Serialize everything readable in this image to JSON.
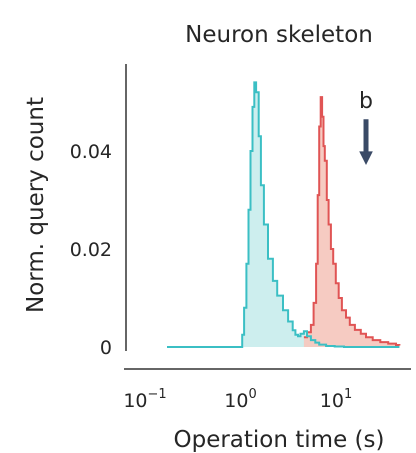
{
  "chart_data": {
    "type": "area",
    "title": "Neuron skeleton",
    "xlabel": "Operation time (s)",
    "ylabel": "Norm. query count",
    "x_scale": "log",
    "xlim": [
      0.1,
      40
    ],
    "ylim": [
      0,
      0.055
    ],
    "grid": false,
    "x_ticks": [
      {
        "base": "10",
        "exp": "−1",
        "value": 0.1
      },
      {
        "base": "10",
        "exp": "0",
        "value": 1
      },
      {
        "base": "10",
        "exp": "1",
        "value": 10
      }
    ],
    "y_ticks": [
      {
        "label": "0",
        "value": 0
      },
      {
        "label": "0.02",
        "value": 0.02
      },
      {
        "label": "0.04",
        "value": 0.04
      }
    ],
    "annotation": {
      "text": "b",
      "x": 17,
      "y_top": 0.048,
      "y_bottom": 0.039
    },
    "series": [
      {
        "color": "#3bbfc4",
        "fill": "#cdeeee",
        "x": [
          0.14,
          0.6,
          0.82,
          0.86,
          0.9,
          0.95,
          1.0,
          1.05,
          1.1,
          1.15,
          1.2,
          1.28,
          1.35,
          1.45,
          1.6,
          1.8,
          2.0,
          2.3,
          2.6,
          2.9,
          3.1,
          3.3,
          3.5,
          3.8,
          4.1,
          4.5,
          5.0,
          5.5,
          6.5,
          8,
          10,
          15,
          20,
          38
        ],
        "y": [
          0,
          0,
          0,
          0.0025,
          0.008,
          0.017,
          0.028,
          0.04,
          0.049,
          0.054,
          0.052,
          0.043,
          0.033,
          0.025,
          0.018,
          0.0135,
          0.0105,
          0.0075,
          0.0052,
          0.0034,
          0.0025,
          0.0022,
          0.0027,
          0.0032,
          0.0022,
          0.0014,
          0.0009,
          0.0005,
          0.0002,
          0.0001,
          0,
          0,
          0,
          0
        ]
      },
      {
        "color": "#e05454",
        "fill": "#f6c8bf",
        "x": [
          3.8,
          4.1,
          4.5,
          4.8,
          5.1,
          5.3,
          5.5,
          5.7,
          5.9,
          6.1,
          6.3,
          6.6,
          6.9,
          7.3,
          7.7,
          8.2,
          8.8,
          9.5,
          10.5,
          11.5,
          13,
          15,
          17,
          20,
          24,
          29,
          35,
          38
        ],
        "y": [
          0.002,
          0.003,
          0.0045,
          0.009,
          0.017,
          0.031,
          0.045,
          0.051,
          0.047,
          0.041,
          0.038,
          0.03,
          0.025,
          0.02,
          0.017,
          0.013,
          0.01,
          0.0075,
          0.006,
          0.0045,
          0.0035,
          0.0027,
          0.002,
          0.0014,
          0.001,
          0.0007,
          0.0004,
          0.0003
        ]
      }
    ]
  }
}
